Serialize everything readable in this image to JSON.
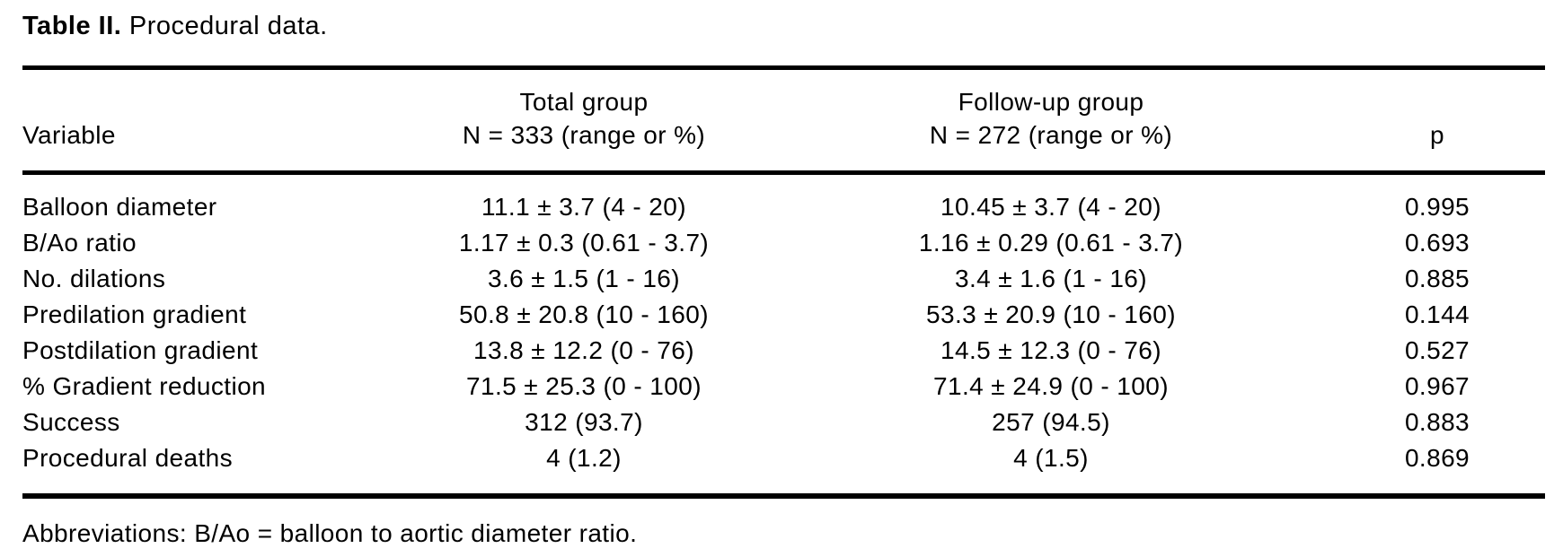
{
  "title": {
    "bold": "Table II.",
    "rest": "Procedural data."
  },
  "table": {
    "columns": [
      {
        "label": "Variable"
      },
      {
        "line1": "Total group",
        "line2": "N = 333 (range or %)"
      },
      {
        "line1": "Follow-up group",
        "line2": "N = 272 (range or %)"
      },
      {
        "label": "p"
      }
    ],
    "rows": [
      {
        "variable": "Balloon diameter",
        "total": "11.1 ± 3.7 (4 - 20)",
        "followup": "10.45 ± 3.7 (4 - 20)",
        "p": "0.995"
      },
      {
        "variable": "B/Ao ratio",
        "total": "1.17 ± 0.3 (0.61 - 3.7)",
        "followup": "1.16 ± 0.29 (0.61 - 3.7)",
        "p": "0.693"
      },
      {
        "variable": "No. dilations",
        "total": "3.6 ± 1.5 (1 - 16)",
        "followup": "3.4 ± 1.6 (1 - 16)",
        "p": "0.885"
      },
      {
        "variable": "Predilation gradient",
        "total": "50.8 ± 20.8 (10 - 160)",
        "followup": "53.3 ± 20.9 (10 - 160)",
        "p": "0.144"
      },
      {
        "variable": "Postdilation gradient",
        "total": "13.8 ± 12.2 (0 - 76)",
        "followup": "14.5 ± 12.3 (0 - 76)",
        "p": "0.527"
      },
      {
        "variable": "% Gradient reduction",
        "total": "71.5 ± 25.3 (0 - 100)",
        "followup": "71.4 ± 24.9 (0 - 100)",
        "p": "0.967"
      },
      {
        "variable": "Success",
        "total": "312 (93.7)",
        "followup": "257 (94.5)",
        "p": "0.883"
      },
      {
        "variable": "Procedural deaths",
        "total": "4 (1.2)",
        "followup": "4 (1.5)",
        "p": "0.869"
      }
    ]
  },
  "footnote": "Abbreviations: B/Ao = balloon to aortic diameter ratio.",
  "colors": {
    "text": "#000000",
    "background": "#ffffff",
    "rule": "#000000"
  }
}
